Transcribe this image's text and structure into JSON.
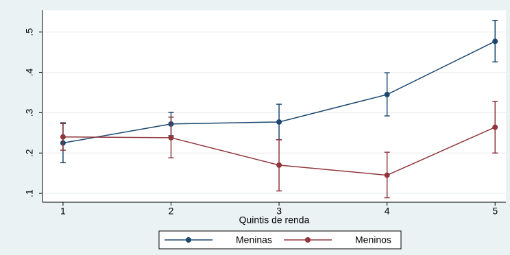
{
  "chart_data": {
    "type": "line",
    "x_label": "Quintis de renda",
    "x": [
      1,
      2,
      3,
      4,
      5
    ],
    "xlim": [
      0.81,
      5.1
    ],
    "xticks": [
      1,
      2,
      3,
      4,
      5
    ],
    "ylim": [
      0.078,
      0.554
    ],
    "yticks": [
      {
        "value": 0.1,
        "label": ".1"
      },
      {
        "value": 0.2,
        "label": ".2"
      },
      {
        "value": 0.3,
        "label": ".3"
      },
      {
        "value": 0.4,
        "label": ".4"
      },
      {
        "value": 0.5,
        "label": ".5"
      }
    ],
    "grid": true,
    "legend": "bottom",
    "series": [
      {
        "name": "Meninas",
        "color": "#1a476f",
        "values": [
          0.225,
          0.272,
          0.277,
          0.345,
          0.477
        ],
        "lower": [
          0.176,
          0.243,
          0.233,
          0.292,
          0.426
        ],
        "upper": [
          0.275,
          0.301,
          0.321,
          0.399,
          0.529
        ]
      },
      {
        "name": "Meninos",
        "color": "#90353b",
        "values": [
          0.24,
          0.238,
          0.17,
          0.145,
          0.264
        ],
        "lower": [
          0.207,
          0.188,
          0.106,
          0.089,
          0.2
        ],
        "upper": [
          0.273,
          0.289,
          0.233,
          0.202,
          0.328
        ]
      }
    ]
  }
}
